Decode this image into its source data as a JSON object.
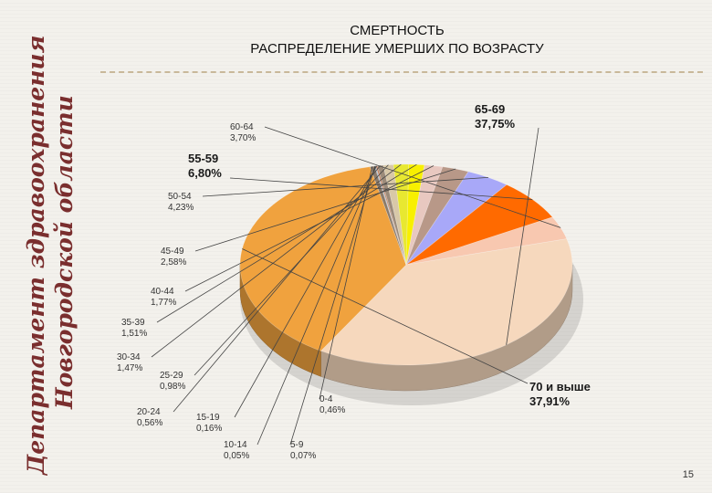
{
  "side_org": {
    "line1": "Департамент здравоохранения",
    "line2": "Новгородской области"
  },
  "page_number": "15",
  "chart_data": {
    "type": "pie",
    "title": "СМЕРТНОСТЬ",
    "subtitle": "РАСПРЕДЕЛЕНИЕ УМЕРШИХ ПО ВОЗРАСТУ",
    "slices": [
      {
        "label": "65-69",
        "value": 37.75,
        "value_label": "37,75%",
        "color": "#f6d8bd",
        "emphasis": true
      },
      {
        "label": "70 и выше",
        "value": 37.91,
        "value_label": "37,91%",
        "color": "#f0a23e",
        "emphasis": true
      },
      {
        "label": "0-4",
        "value": 0.46,
        "value_label": "0,46%",
        "color": "#8a7a6a",
        "emphasis": false
      },
      {
        "label": "5-9",
        "value": 0.07,
        "value_label": "0,07%",
        "color": "#6f8fb0",
        "emphasis": false
      },
      {
        "label": "10-14",
        "value": 0.05,
        "value_label": "0,05%",
        "color": "#a0a0a0",
        "emphasis": false
      },
      {
        "label": "15-19",
        "value": 0.16,
        "value_label": "0,16%",
        "color": "#c08060",
        "emphasis": false
      },
      {
        "label": "20-24",
        "value": 0.56,
        "value_label": "0,56%",
        "color": "#9c8b7a",
        "emphasis": false
      },
      {
        "label": "25-29",
        "value": 0.98,
        "value_label": "0,98%",
        "color": "#d8c8a8",
        "emphasis": false
      },
      {
        "label": "30-34",
        "value": 1.47,
        "value_label": "1,47%",
        "color": "#e8e830",
        "emphasis": false
      },
      {
        "label": "35-39",
        "value": 1.51,
        "value_label": "1,51%",
        "color": "#f8f000",
        "emphasis": false
      },
      {
        "label": "40-44",
        "value": 1.77,
        "value_label": "1,77%",
        "color": "#e8c8c0",
        "emphasis": false
      },
      {
        "label": "45-49",
        "value": 2.58,
        "value_label": "2,58%",
        "color": "#b89888",
        "emphasis": false
      },
      {
        "label": "50-54",
        "value": 4.23,
        "value_label": "4,23%",
        "color": "#a8a8f8",
        "emphasis": false
      },
      {
        "label": "55-59",
        "value": 6.8,
        "value_label": "6,80%",
        "color": "#ff6a00",
        "emphasis": true
      },
      {
        "label": "60-64",
        "value": 3.7,
        "value_label": "3,70%",
        "color": "#f8c8b0",
        "emphasis": false
      }
    ]
  }
}
